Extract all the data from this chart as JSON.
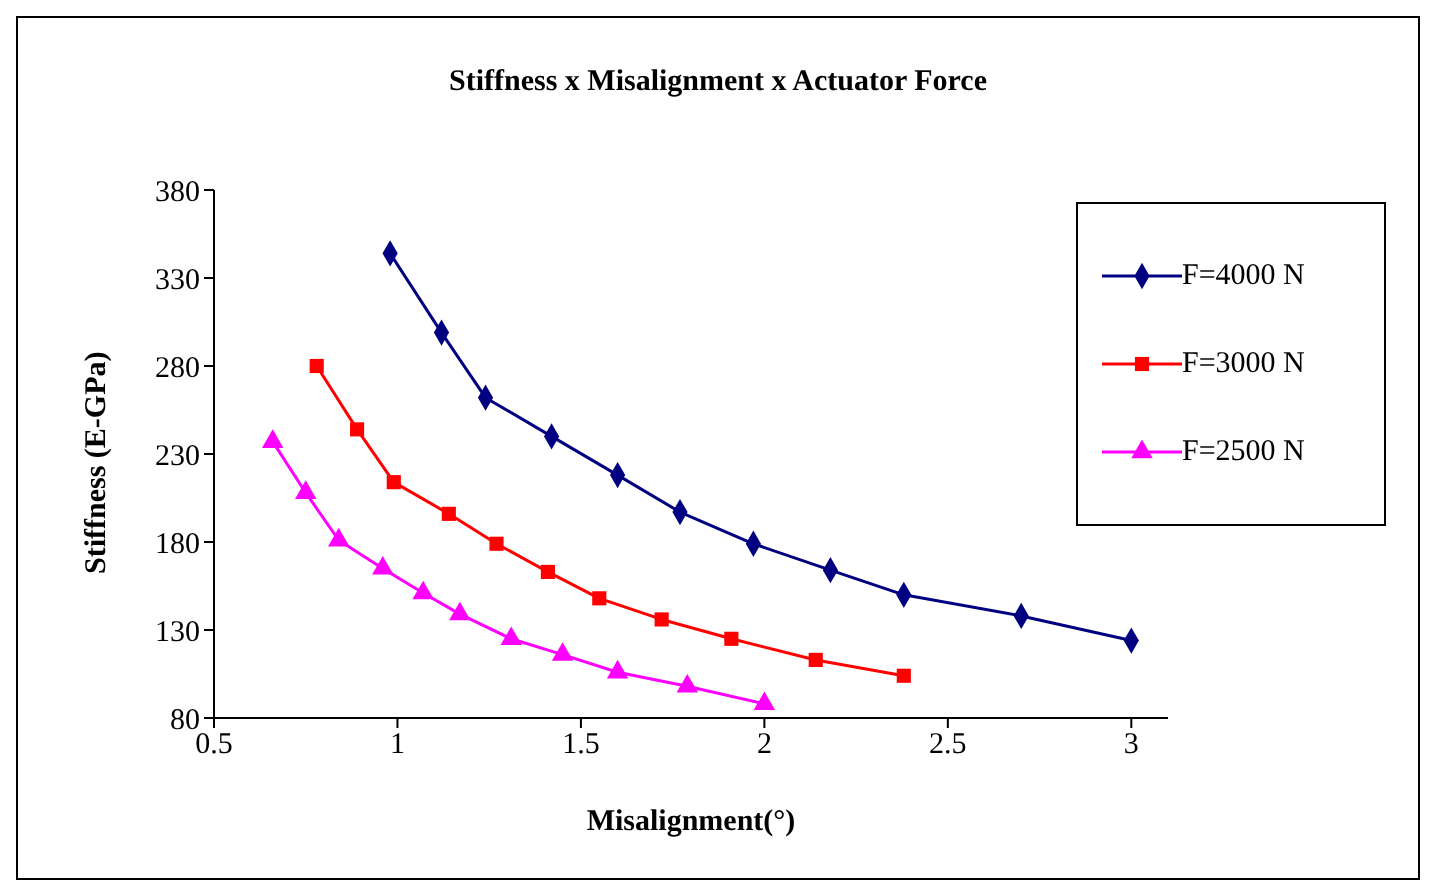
{
  "chart_data": {
    "type": "line",
    "title": "Stiffness x Misalignment x Actuator Force",
    "xlabel": "Misalignment(°)",
    "ylabel": "Stiffness (E-GPa)",
    "xlim": [
      0.5,
      3.1
    ],
    "xticks": [
      0.5,
      1,
      1.5,
      2,
      2.5,
      3
    ],
    "ylim": [
      80,
      380
    ],
    "yticks": [
      80,
      130,
      180,
      230,
      280,
      330,
      380
    ],
    "grid": false,
    "legend": "top right",
    "series": [
      {
        "name": "F=4000 N",
        "color": "#000080",
        "marker": "diamond",
        "x": [
          0.98,
          1.12,
          1.24,
          1.42,
          1.6,
          1.77,
          1.97,
          2.18,
          2.38,
          2.7,
          3.0
        ],
        "values": [
          344,
          299,
          262,
          240,
          218,
          197,
          179,
          164,
          150,
          138,
          124
        ]
      },
      {
        "name": "F=3000 N",
        "color": "#ff0000",
        "marker": "square",
        "x": [
          0.78,
          0.89,
          0.99,
          1.14,
          1.27,
          1.41,
          1.55,
          1.72,
          1.91,
          2.14,
          2.38
        ],
        "values": [
          280,
          244,
          214,
          196,
          179,
          163,
          148,
          136,
          125,
          113,
          104
        ]
      },
      {
        "name": "F=2500 N",
        "color": "#ff00ff",
        "marker": "triangle",
        "x": [
          0.66,
          0.75,
          0.84,
          0.96,
          1.07,
          1.17,
          1.31,
          1.45,
          1.6,
          1.79,
          2.0
        ],
        "values": [
          237,
          208,
          181,
          165,
          151,
          139,
          125,
          116,
          106,
          98,
          88
        ]
      }
    ]
  }
}
